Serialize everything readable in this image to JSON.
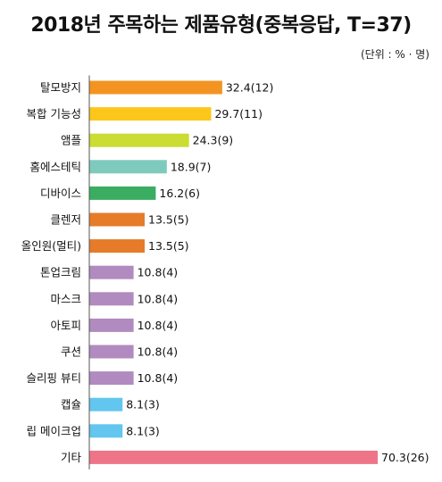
{
  "chart_data": {
    "type": "bar",
    "orientation": "horizontal",
    "title": "2018년 주목하는 제품유형(중복응답, T=37)",
    "unit_note": "(단위 : % · 명)",
    "categories": [
      "탈모방지",
      "복합 기능성",
      "앰플",
      "홈에스테틱",
      "디바이스",
      "클렌저",
      "올인원(멀티)",
      "톤업크림",
      "마스크",
      "아토피",
      "쿠션",
      "슬리핑 뷰티",
      "캡슐",
      "립 메이크업",
      "기타"
    ],
    "values": [
      32.4,
      29.7,
      24.3,
      18.9,
      16.2,
      13.5,
      13.5,
      10.8,
      10.8,
      10.8,
      10.8,
      10.8,
      8.1,
      8.1,
      70.3
    ],
    "labels": [
      "32.4(12)",
      "29.7(11)",
      "24.3(9)",
      "18.9(7)",
      "16.2(6)",
      "13.5(5)",
      "13.5(5)",
      "10.8(4)",
      "10.8(4)",
      "10.8(4)",
      "10.8(4)",
      "10.8(4)",
      "8.1(3)",
      "8.1(3)",
      "70.3(26)"
    ],
    "colors": [
      "#f39422",
      "#fcc71a",
      "#cbdc33",
      "#7ecbbd",
      "#3aad60",
      "#e67b2a",
      "#e67b2a",
      "#b18ac0",
      "#b18ac0",
      "#b18ac0",
      "#b18ac0",
      "#b18ac0",
      "#62c6ee",
      "#62c6ee",
      "#ee7587"
    ],
    "xlim": [
      0,
      70.3
    ],
    "grid": false,
    "legend": "none"
  }
}
